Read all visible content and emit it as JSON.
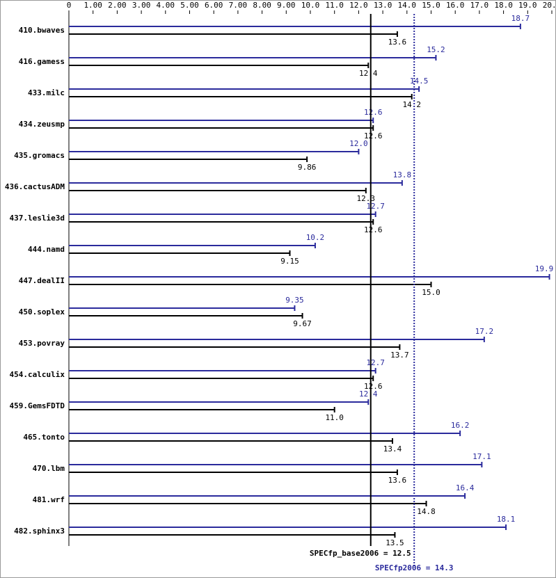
{
  "chart_data": {
    "type": "bar",
    "orientation": "horizontal",
    "categories": [
      "410.bwaves",
      "416.gamess",
      "433.milc",
      "434.zeusmp",
      "435.gromacs",
      "436.cactusADM",
      "437.leslie3d",
      "444.namd",
      "447.dealII",
      "450.soplex",
      "453.povray",
      "454.calculix",
      "459.GemsFDTD",
      "465.tonto",
      "470.lbm",
      "481.wrf",
      "482.sphinx3"
    ],
    "series": [
      {
        "color": "#2a2a9c",
        "values": [
          18.7,
          15.2,
          14.5,
          12.6,
          12.0,
          13.8,
          12.7,
          10.2,
          19.9,
          9.35,
          17.2,
          12.7,
          12.4,
          16.2,
          17.1,
          16.4,
          18.1
        ],
        "value_labels": [
          "18.7",
          "15.2",
          "14.5",
          "12.6",
          "12.0",
          "13.8",
          "12.7",
          "10.2",
          "19.9",
          "9.35",
          "17.2",
          "12.7",
          "12.4",
          "16.2",
          "17.1",
          "16.4",
          "18.1"
        ]
      },
      {
        "color": "#000000",
        "values": [
          13.6,
          12.4,
          14.2,
          12.6,
          9.86,
          12.3,
          12.6,
          9.15,
          15.0,
          9.67,
          13.7,
          12.6,
          11.0,
          13.4,
          13.6,
          14.8,
          13.5
        ],
        "value_labels": [
          "13.6",
          "12.4",
          "14.2",
          "12.6",
          "9.86",
          "12.3",
          "12.6",
          "9.15",
          "15.0",
          "9.67",
          "13.7",
          "12.6",
          "11.0",
          "13.4",
          "13.6",
          "14.8",
          "13.5"
        ]
      }
    ],
    "xlim": [
      0,
      20
    ],
    "xticks": [
      0,
      {
        "value": 1,
        "label": "1.00"
      },
      {
        "value": 2,
        "label": "2.00"
      },
      {
        "value": 3,
        "label": "3.00"
      },
      {
        "value": 4,
        "label": "4.00"
      },
      {
        "value": 5,
        "label": "5.00"
      },
      {
        "value": 6,
        "label": "6.00"
      },
      {
        "value": 7,
        "label": "7.00"
      },
      {
        "value": 8,
        "label": "8.00"
      },
      {
        "value": 9,
        "label": "9.00"
      },
      {
        "value": 10,
        "label": "10.0"
      },
      {
        "value": 11,
        "label": "11.0"
      },
      {
        "value": 12,
        "label": "12.0"
      },
      {
        "value": 13,
        "label": "13.0"
      },
      {
        "value": 14,
        "label": "14.0"
      },
      {
        "value": 15,
        "label": "15.0"
      },
      {
        "value": 16,
        "label": "16.0"
      },
      {
        "value": 17,
        "label": "17.0"
      },
      {
        "value": 18,
        "label": "18.0"
      },
      {
        "value": 19,
        "label": "19.0"
      },
      {
        "value": 20,
        "label": "20.0"
      }
    ],
    "reference_lines": [
      {
        "label": "SPECfp_base2006 = 12.5",
        "value": 12.5,
        "color": "#000000",
        "style": "solid"
      },
      {
        "label": "SPECfp2006 = 14.3",
        "value": 14.3,
        "color": "#2a2a9c",
        "style": "dotted"
      }
    ]
  }
}
